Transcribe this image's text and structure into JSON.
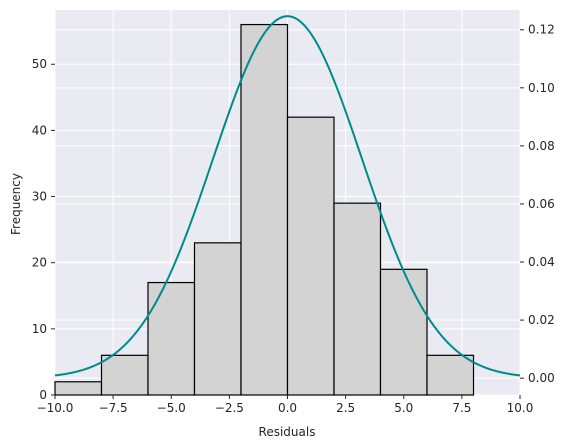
{
  "chart_data": {
    "type": "bar",
    "subtype": "histogram_with_density_curve",
    "title": "",
    "xlabel": "Residuals",
    "ylabel": "Frequency",
    "y2label": "",
    "xlim": [
      -10,
      10
    ],
    "ylim": [
      0,
      58.2
    ],
    "y2lim": [
      -0.0058,
      0.1268
    ],
    "xticks": [
      -10,
      -7.5,
      -5,
      -2.5,
      0,
      2.5,
      5,
      7.5,
      10
    ],
    "xtick_labels": [
      "−10.0",
      "−7.5",
      "−5.0",
      "−2.5",
      "0.0",
      "2.5",
      "5.0",
      "7.5",
      "10.0"
    ],
    "yticks": [
      0,
      10,
      20,
      30,
      40,
      50
    ],
    "ytick_labels": [
      "0",
      "10",
      "20",
      "30",
      "40",
      "50"
    ],
    "y2ticks": [
      0,
      0.02,
      0.04,
      0.06,
      0.08,
      0.1,
      0.12
    ],
    "y2tick_labels": [
      "0.00",
      "0.02",
      "0.04",
      "0.06",
      "0.08",
      "0.10",
      "0.12"
    ],
    "grid": true,
    "bins": [
      {
        "start": -10,
        "end": -8,
        "count": 2
      },
      {
        "start": -8,
        "end": -6,
        "count": 6
      },
      {
        "start": -6,
        "end": -4,
        "count": 17
      },
      {
        "start": -4,
        "end": -2,
        "count": 23
      },
      {
        "start": -2,
        "end": 0,
        "count": 56
      },
      {
        "start": 0,
        "end": 2,
        "count": 42
      },
      {
        "start": 2,
        "end": 4,
        "count": 29
      },
      {
        "start": 4,
        "end": 6,
        "count": 19
      },
      {
        "start": 6,
        "end": 8,
        "count": 6
      }
    ],
    "density_curve": {
      "distribution": "normal",
      "mean": 0.0,
      "std": 3.2,
      "axis": "right"
    },
    "colors": {
      "background": "#eaeaf2",
      "grid": "#ffffff",
      "bar_fill": "#d3d3d3",
      "bar_edge": "#000000",
      "curve": "#008b8b"
    }
  }
}
